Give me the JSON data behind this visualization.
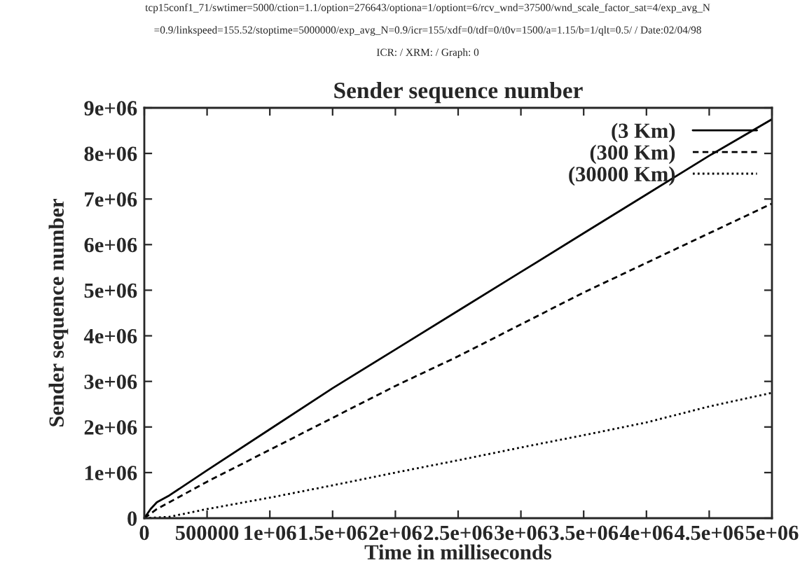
{
  "chart_data": {
    "type": "line",
    "title": "Sender sequence number",
    "xlabel": "Time in milliseconds",
    "ylabel": "Sender sequence number",
    "annotations": [
      "tcp15conf1_71/swtimer=5000/ction=1.1/option=276643/optiona=1/optiont=6/rcv_wnd=37500/wnd_scale_factor_sat=4/exp_avg_N",
      "=0.9/linkspeed=155.52/stoptime=5000000/exp_avg_N=0.9/icr=155/xdf=0/tdf=0/t0v=1500/a=1.15/b=1/qlt=0.5/ / Date:02/04/98",
      "ICR: / XRM: / Graph: 0"
    ],
    "xlim": [
      0,
      5000000
    ],
    "ylim": [
      0,
      9000000
    ],
    "xticks": [
      0,
      500000,
      {
        "value": 1000000,
        "label": "1e+06"
      },
      {
        "value": 1500000,
        "label": "1.5e+06"
      },
      {
        "value": 2000000,
        "label": "2e+06"
      },
      {
        "value": 2500000,
        "label": "2.5e+06"
      },
      {
        "value": 3000000,
        "label": "3e+06"
      },
      {
        "value": 3500000,
        "label": "3.5e+06"
      },
      {
        "value": 4000000,
        "label": "4e+06"
      },
      {
        "value": 4500000,
        "label": "4.5e+06"
      },
      {
        "value": 5000000,
        "label": "5e+06"
      }
    ],
    "yticks": [
      0,
      {
        "value": 1000000,
        "label": "1e+06"
      },
      {
        "value": 2000000,
        "label": "2e+06"
      },
      {
        "value": 3000000,
        "label": "3e+06"
      },
      {
        "value": 4000000,
        "label": "4e+06"
      },
      {
        "value": 5000000,
        "label": "5e+06"
      },
      {
        "value": 6000000,
        "label": "6e+06"
      },
      {
        "value": 7000000,
        "label": "7e+06"
      },
      {
        "value": 8000000,
        "label": "8e+06"
      },
      {
        "value": 9000000,
        "label": "9e+06"
      }
    ],
    "grid": false,
    "legend": "top right",
    "series": [
      {
        "name": "(3 Km)",
        "color": "#000000",
        "line_style": "solid",
        "x": [
          0,
          50000,
          100000,
          200000,
          500000,
          1000000,
          1500000,
          2000000,
          2500000,
          3000000,
          3500000,
          4000000,
          4500000,
          5000000
        ],
        "values": [
          0,
          200000,
          350000,
          500000,
          1050000,
          1950000,
          2850000,
          3700000,
          4550000,
          5400000,
          6250000,
          7100000,
          7950000,
          8750000
        ]
      },
      {
        "name": "(300 Km)",
        "color": "#000000",
        "line_style": "dashed",
        "x": [
          0,
          50000,
          100000,
          200000,
          500000,
          1000000,
          1500000,
          2000000,
          2500000,
          3000000,
          3500000,
          4000000,
          4500000,
          5000000
        ],
        "values": [
          0,
          100000,
          200000,
          350000,
          800000,
          1500000,
          2200000,
          2900000,
          3550000,
          4250000,
          4950000,
          5600000,
          6250000,
          6900000
        ]
      },
      {
        "name": "(30000 Km)",
        "color": "#000000",
        "line_style": "dotted",
        "x": [
          0,
          200000,
          500000,
          1000000,
          1500000,
          2000000,
          2500000,
          3000000,
          3500000,
          4000000,
          4500000,
          5000000
        ],
        "values": [
          0,
          30000,
          200000,
          450000,
          720000,
          1000000,
          1270000,
          1550000,
          1820000,
          2100000,
          2450000,
          2750000
        ]
      }
    ]
  }
}
